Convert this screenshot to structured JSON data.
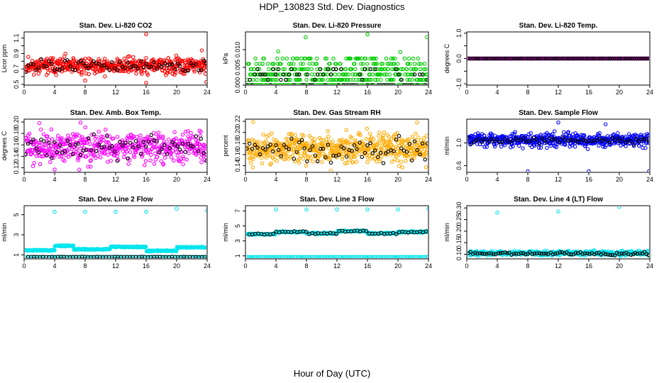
{
  "figure": {
    "title": "HDP_130823  Std. Dev. Diagnostics",
    "xlabel": "Hour of Day (UTC)"
  },
  "chart_data": [
    {
      "type": "scatter",
      "title": "Stan. Dev. Li-820 CO2",
      "ylabel": "Licor ppm",
      "xlim": [
        0,
        24
      ],
      "ylim": [
        0.49,
        1.18
      ],
      "xticks": [
        0,
        4,
        8,
        12,
        16,
        20,
        24
      ],
      "yticks": [
        0.5,
        0.6,
        0.7,
        0.8,
        0.9,
        1.0,
        1.1
      ],
      "ytick_labels": [
        "0.5",
        "",
        "0.7",
        "",
        "0.9",
        "",
        "1.1"
      ],
      "colors": {
        "fill": "#ff0000",
        "summary": "#000000"
      },
      "series": [
        {
          "name": "samples",
          "generator": {
            "kind": "noise",
            "base": 0.74,
            "amp": 0.09,
            "n": 520,
            "seed": 11
          }
        },
        {
          "name": "hourly",
          "generator": {
            "kind": "noise",
            "base": 0.74,
            "amp": 0.07,
            "n": 70,
            "seed": 12
          }
        }
      ],
      "outliers": [
        {
          "x": 16.0,
          "y": 1.15
        },
        {
          "x": 16.0,
          "y": 0.52
        },
        {
          "x": 23.3,
          "y": 0.94
        },
        {
          "x": 23.9,
          "y": 0.53
        },
        {
          "x": 8.0,
          "y": 0.55
        }
      ]
    },
    {
      "type": "scatter",
      "title": "Stan. Dev. Li-820 Pressure",
      "ylabel": "kPa",
      "xlim": [
        0,
        24
      ],
      "ylim": [
        0.0,
        0.015
      ],
      "xticks": [
        0,
        4,
        8,
        12,
        16,
        20,
        24
      ],
      "yticks": [
        0.0,
        0.005,
        0.01
      ],
      "ytick_labels": [
        "0.000",
        "0.005",
        "0.010"
      ],
      "colors": {
        "fill": "#00cc00",
        "summary": "#000000"
      },
      "series": [
        {
          "name": "samples",
          "generator": {
            "kind": "steps",
            "levels": [
              0.0,
              0.0015,
              0.003,
              0.0045,
              0.006,
              0.0075
            ],
            "n": 520,
            "seed": 21
          }
        },
        {
          "name": "hourly",
          "generator": {
            "kind": "steps",
            "levels": [
              0.0,
              0.0015,
              0.003,
              0.0045
            ],
            "n": 70,
            "seed": 22
          }
        }
      ],
      "outliers": [
        {
          "x": 7.9,
          "y": 0.0135
        },
        {
          "x": 16.0,
          "y": 0.0143
        },
        {
          "x": 23.8,
          "y": 0.0135
        },
        {
          "x": 4.3,
          "y": 0.0095
        },
        {
          "x": 20.3,
          "y": 0.0093
        }
      ]
    },
    {
      "type": "scatter",
      "title": "Stan. Dev. Li-820 Temp.",
      "ylabel": "degrees C",
      "xlim": [
        0,
        24
      ],
      "ylim": [
        -1.05,
        1.05
      ],
      "xticks": [
        0,
        4,
        8,
        12,
        16,
        20,
        24
      ],
      "yticks": [
        -1.0,
        -0.5,
        0.0,
        0.5,
        1.0
      ],
      "ytick_labels": [
        "-1.0",
        "",
        "0.0",
        "",
        "1.0"
      ],
      "colors": {
        "fill": "#ff00ff",
        "summary": "#000000"
      },
      "series": [
        {
          "name": "samples",
          "generator": {
            "kind": "flat",
            "base": 0.0,
            "n": 260,
            "seed": 31
          }
        },
        {
          "name": "hourly",
          "generator": {
            "kind": "flat",
            "base": 0.0,
            "n": 90,
            "seed": 32
          }
        }
      ],
      "outliers": []
    },
    {
      "type": "scatter",
      "title": "Stan. Dev. Amb. Box Temp.",
      "ylabel": "degrees C",
      "xlim": [
        0,
        24
      ],
      "ylim": [
        0.112,
        0.205
      ],
      "xticks": [
        0,
        4,
        8,
        12,
        16,
        20,
        24
      ],
      "yticks": [
        0.12,
        0.14,
        0.16,
        0.18,
        0.2
      ],
      "ytick_labels": [
        "0.12",
        "0.14",
        "0.16",
        "0.18",
        "0.20"
      ],
      "colors": {
        "fill": "#ff00ff",
        "summary": "#000000"
      },
      "series": [
        {
          "name": "samples",
          "generator": {
            "kind": "noise",
            "base": 0.155,
            "amp": 0.022,
            "n": 520,
            "seed": 41
          }
        },
        {
          "name": "hourly",
          "generator": {
            "kind": "noise",
            "base": 0.155,
            "amp": 0.016,
            "n": 70,
            "seed": 42
          }
        }
      ],
      "outliers": [
        {
          "x": 2.0,
          "y": 0.198
        },
        {
          "x": 7.4,
          "y": 0.199
        },
        {
          "x": 4.0,
          "y": 0.117
        }
      ]
    },
    {
      "type": "scatter",
      "title": "Stan. Dev. Gas Stream RH",
      "ylabel": "percent",
      "xlim": [
        0,
        24
      ],
      "ylim": [
        0.128,
        0.224
      ],
      "xticks": [
        0,
        4,
        8,
        12,
        16,
        20,
        24
      ],
      "yticks": [
        0.14,
        0.16,
        0.18,
        0.2,
        0.22
      ],
      "ytick_labels": [
        "0.14",
        "0.16",
        "0.18",
        "0.20",
        "0.22"
      ],
      "colors": {
        "fill": "#ffaa00",
        "summary": "#000000"
      },
      "series": [
        {
          "name": "samples",
          "generator": {
            "kind": "noise",
            "base": 0.17,
            "amp": 0.022,
            "n": 560,
            "seed": 51
          }
        },
        {
          "name": "hourly",
          "generator": {
            "kind": "noise",
            "base": 0.17,
            "amp": 0.017,
            "n": 70,
            "seed": 52
          }
        }
      ],
      "outliers": [
        {
          "x": 1.0,
          "y": 0.219
        },
        {
          "x": 22.5,
          "y": 0.218
        },
        {
          "x": 11.2,
          "y": 0.131
        }
      ]
    },
    {
      "type": "scatter",
      "title": "Stan. Dev. Sample Flow",
      "ylabel": "ml/min",
      "xlim": [
        0,
        24
      ],
      "ylim": [
        0.48,
        1.42
      ],
      "xticks": [
        0,
        4,
        8,
        12,
        16,
        20,
        24
      ],
      "yticks": [
        0.6,
        1.0
      ],
      "ytick_labels": [
        "0.6",
        "1.0"
      ],
      "colors": {
        "fill": "#0000ff",
        "summary": "#000000"
      },
      "series": [
        {
          "name": "samples",
          "generator": {
            "kind": "noise",
            "base": 1.05,
            "amp": 0.1,
            "n": 520,
            "seed": 61
          }
        },
        {
          "name": "hourly",
          "generator": {
            "kind": "noise",
            "base": 1.05,
            "amp": 0.05,
            "n": 70,
            "seed": 62
          }
        }
      ],
      "outliers": [
        {
          "x": 8.0,
          "y": 0.5
        },
        {
          "x": 16.0,
          "y": 0.5
        },
        {
          "x": 23.9,
          "y": 0.5
        },
        {
          "x": 12.0,
          "y": 1.36
        },
        {
          "x": 18.2,
          "y": 1.33
        }
      ]
    },
    {
      "type": "scatter",
      "title": "Stan. Dev. Line 2 Flow",
      "ylabel": "ml/min",
      "xlim": [
        0,
        24
      ],
      "ylim": [
        0.6,
        5.9
      ],
      "xticks": [
        0,
        4,
        8,
        12,
        16,
        20,
        24
      ],
      "yticks": [
        1,
        3,
        5
      ],
      "ytick_labels": [
        "1",
        "3",
        "5"
      ],
      "colors": {
        "fill": "#00e5ee",
        "summary": "#000000"
      },
      "series": [
        {
          "name": "samples",
          "generator": {
            "kind": "segments",
            "segments": [
              [
                0,
                4,
                1.45
              ],
              [
                4,
                6.5,
                1.9
              ],
              [
                6.5,
                11.3,
                1.55
              ],
              [
                11.3,
                16,
                1.8
              ],
              [
                16,
                20,
                1.4
              ],
              [
                20,
                24,
                1.75
              ]
            ],
            "amp": 0.1,
            "n": 420,
            "seed": 71
          }
        },
        {
          "name": "baseline",
          "generator": {
            "kind": "flat",
            "base": 0.8,
            "n": 110,
            "seed": 72
          }
        }
      ],
      "outliers": [
        {
          "x": 4.0,
          "y": 5.3
        },
        {
          "x": 8.0,
          "y": 5.3
        },
        {
          "x": 12.0,
          "y": 5.3
        },
        {
          "x": 16.0,
          "y": 5.3
        },
        {
          "x": 20.0,
          "y": 5.6
        },
        {
          "x": 24.0,
          "y": 5.4
        }
      ]
    },
    {
      "type": "scatter",
      "title": "Stan. Dev. Line 3 Flow",
      "ylabel": "ml/min",
      "xlim": [
        0,
        24
      ],
      "ylim": [
        0.6,
        7.7
      ],
      "xticks": [
        0,
        4,
        8,
        12,
        16,
        20,
        24
      ],
      "yticks": [
        1,
        3,
        5,
        7
      ],
      "ytick_labels": [
        "1",
        "3",
        "5",
        "7"
      ],
      "colors": {
        "fill": "#00e5ee",
        "summary": "#000000"
      },
      "series": [
        {
          "name": "samples",
          "generator": {
            "kind": "segments",
            "segments": [
              [
                0,
                4,
                3.9
              ],
              [
                4,
                8,
                4.2
              ],
              [
                8,
                12,
                4.0
              ],
              [
                12,
                16,
                4.3
              ],
              [
                16,
                20,
                4.0
              ],
              [
                20,
                24,
                4.2
              ]
            ],
            "amp": 0.18,
            "n": 400,
            "seed": 81
          }
        },
        {
          "name": "baseline",
          "generator": {
            "kind": "flat",
            "base": 0.85,
            "n": 130,
            "seed": 82
          }
        }
      ],
      "outliers": [
        {
          "x": 4.0,
          "y": 7.2
        },
        {
          "x": 8.0,
          "y": 7.2
        },
        {
          "x": 12.0,
          "y": 7.2
        },
        {
          "x": 16.0,
          "y": 7.2
        },
        {
          "x": 20.0,
          "y": 7.2
        },
        {
          "x": 24.0,
          "y": 7.3
        }
      ]
    },
    {
      "type": "scatter",
      "title": "Stan. Dev. Line 4 (LT) Flow",
      "ylabel": "ml/min",
      "xlim": [
        0,
        24
      ],
      "ylim": [
        0.08,
        0.31
      ],
      "xticks": [
        0,
        4,
        8,
        12,
        16,
        20,
        24
      ],
      "yticks": [
        0.1,
        0.15,
        0.2,
        0.25,
        0.3
      ],
      "ytick_labels": [
        "0.10",
        "0.15",
        "0.20",
        "0.25",
        "0.30"
      ],
      "colors": {
        "fill": "#00e5ee",
        "summary": "#000000"
      },
      "series": [
        {
          "name": "samples",
          "generator": {
            "kind": "noise",
            "base": 0.105,
            "amp": 0.008,
            "n": 480,
            "seed": 91
          }
        },
        {
          "name": "hourly",
          "generator": {
            "kind": "noise",
            "base": 0.103,
            "amp": 0.006,
            "n": 80,
            "seed": 92
          }
        }
      ],
      "outliers": [
        {
          "x": 4.0,
          "y": 0.28
        },
        {
          "x": 12.0,
          "y": 0.285
        },
        {
          "x": 20.0,
          "y": 0.305
        }
      ]
    }
  ]
}
